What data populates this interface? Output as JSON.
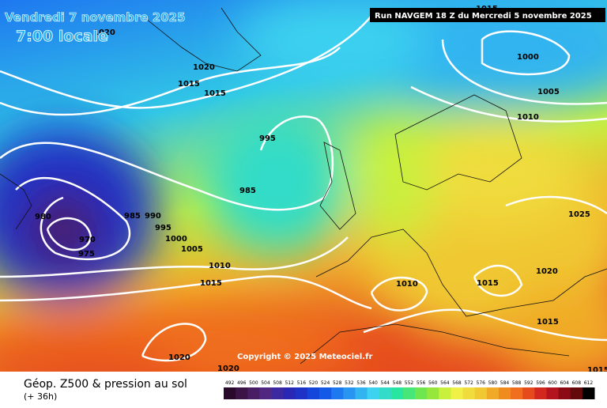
{
  "header": {
    "date": "Vendredi 7 novembre 2025",
    "time": "7:00 locale",
    "run": "Run NAVGEM 18 Z du Mercredi 5 novembre 2025"
  },
  "isobars": [
    1020,
    1020,
    1015,
    1015,
    995,
    985,
    980,
    985,
    990,
    995,
    1000,
    1005,
    970,
    975,
    1010,
    1015,
    1010,
    1015,
    1020,
    1025,
    1015,
    1020,
    1020,
    1000,
    1005,
    1010,
    1015,
    1015
  ],
  "copyright": "Copyright © 2025 Meteociel.fr",
  "footer": {
    "title": "Géop. Z500 & pression au sol",
    "lead": "(+ 36h)"
  },
  "legend": {
    "labels": [
      492,
      496,
      500,
      504,
      508,
      512,
      516,
      520,
      524,
      528,
      532,
      536,
      540,
      544,
      548,
      552,
      556,
      560,
      564,
      568,
      572,
      576,
      580,
      584,
      588,
      592,
      596,
      600,
      604,
      608,
      612
    ],
    "colors": [
      "#2a0a2a",
      "#3c1446",
      "#4a1e64",
      "#502882",
      "#3c28a0",
      "#2828b4",
      "#1e32c8",
      "#1446dc",
      "#145ae6",
      "#1e78f0",
      "#2896f0",
      "#32b4f0",
      "#3cd2f0",
      "#32dcc8",
      "#28e6a0",
      "#46e678",
      "#6ee650",
      "#96e63c",
      "#c8f03c",
      "#f0f046",
      "#f0dc3c",
      "#f0c832",
      "#f0aa28",
      "#f08c1e",
      "#f06e1e",
      "#e64b1e",
      "#d2281e",
      "#b4141e",
      "#8c0a14",
      "#640a0a",
      "#000000"
    ]
  }
}
